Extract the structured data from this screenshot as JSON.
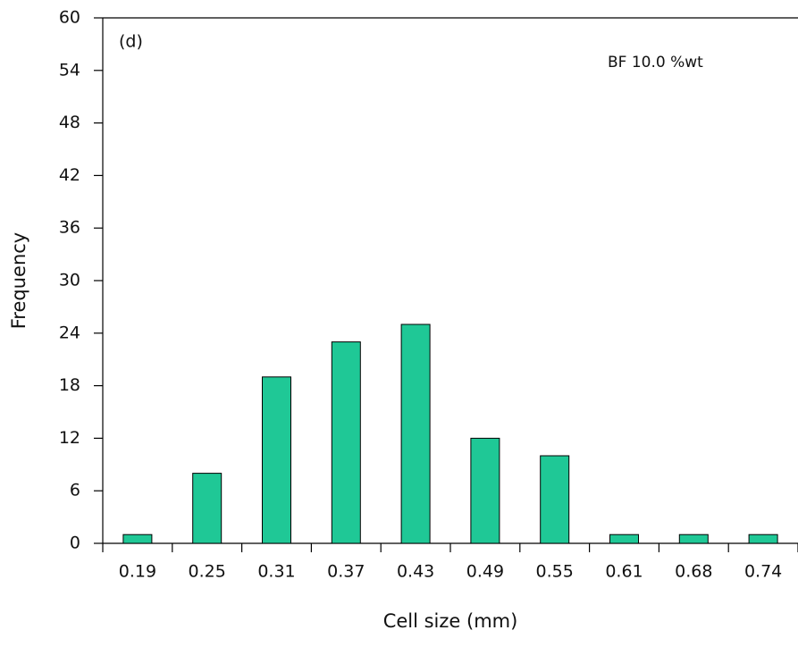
{
  "chart_data": {
    "type": "bar",
    "categories": [
      "0.19",
      "0.25",
      "0.31",
      "0.37",
      "0.43",
      "0.49",
      "0.55",
      "0.61",
      "0.68",
      "0.74"
    ],
    "values": [
      1,
      8,
      19,
      23,
      25,
      12,
      10,
      1,
      1,
      1
    ],
    "color": "#1fc896",
    "x_label": "Cell size (mm)",
    "y_label": "Frequency",
    "annotations": [
      "(d)",
      "BF 10.0 %wt"
    ],
    "ylim": [
      0,
      60
    ],
    "yticks": [
      0,
      6,
      12,
      18,
      24,
      30,
      36,
      42,
      48,
      54,
      60
    ],
    "grid": false
  }
}
